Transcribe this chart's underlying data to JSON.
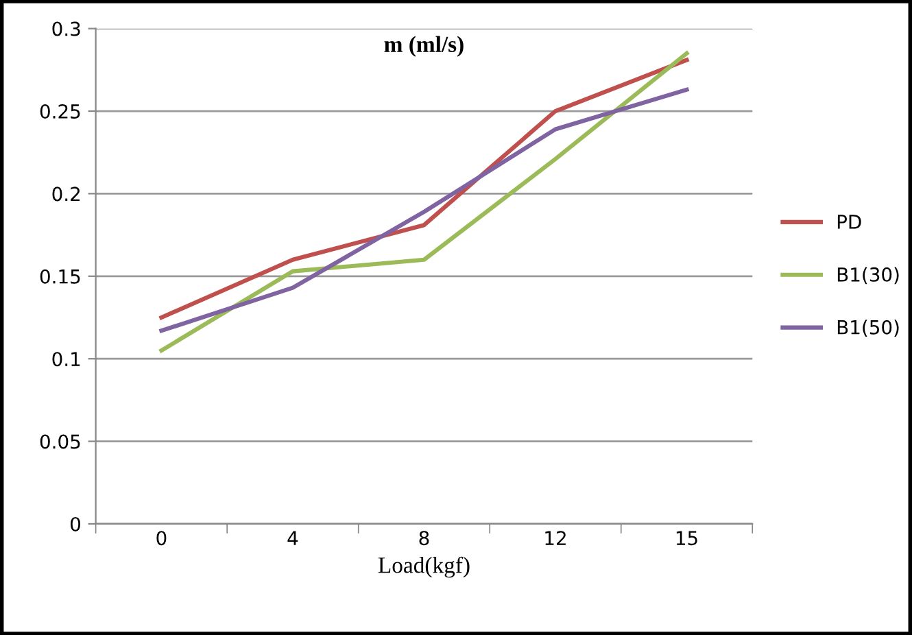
{
  "chart_data": {
    "type": "line",
    "title": "m (ml/s)",
    "xlabel": "Load(kgf)",
    "categories": [
      "0",
      "4",
      "8",
      "12",
      "15"
    ],
    "series": [
      {
        "name": "PD",
        "color": "#c0504d",
        "values": [
          0.125,
          0.16,
          0.181,
          0.25,
          0.281
        ]
      },
      {
        "name": "B1(30)",
        "color": "#9bbb59",
        "values": [
          0.105,
          0.153,
          0.16,
          0.221,
          0.285
        ]
      },
      {
        "name": "B1(50)",
        "color": "#8064a2",
        "values": [
          0.117,
          0.143,
          0.189,
          0.239,
          0.263
        ]
      }
    ],
    "ylim": [
      0,
      0.3
    ],
    "yticks": [
      0,
      0.05,
      0.1,
      0.15,
      0.2,
      0.25,
      0.3
    ],
    "grid": "y",
    "legend": "right"
  }
}
